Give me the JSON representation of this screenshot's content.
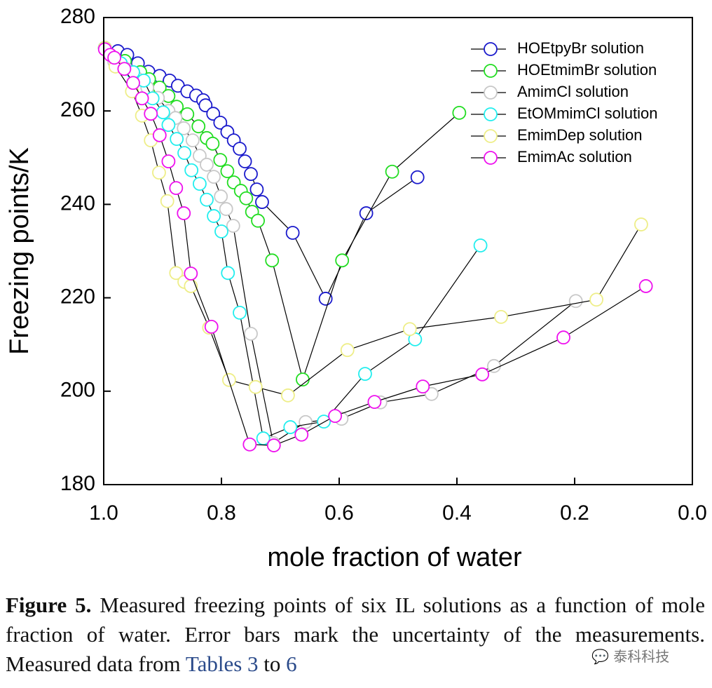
{
  "chart_data": {
    "type": "line",
    "markers": "open-circle",
    "xlabel": "mole fraction of water",
    "ylabel": "Freezing points/K",
    "xlim": [
      1.0,
      0.0
    ],
    "ylim": [
      180,
      280
    ],
    "xticks": [
      {
        "value": 1.0,
        "label": "1.0"
      },
      0.8,
      0.6,
      0.4,
      0.2,
      {
        "value": 0.0,
        "label": "0.0"
      }
    ],
    "yticks": [
      180,
      200,
      220,
      240,
      260,
      280
    ],
    "legend": "upper right",
    "line_color": "#000000",
    "series": [
      {
        "name": "HOEtpyBr solution",
        "color": "#1a1acc",
        "x": [
          0.998,
          0.976,
          0.96,
          0.942,
          0.924,
          0.905,
          0.888,
          0.874,
          0.858,
          0.843,
          0.831,
          0.827,
          0.814,
          0.802,
          0.79,
          0.779,
          0.769,
          0.76,
          0.75,
          0.74,
          0.731,
          0.679,
          0.623,
          0.554,
          0.467
        ],
        "values": [
          273.5,
          272.8,
          272,
          270.2,
          268.4,
          267.5,
          266.5,
          265.4,
          264.2,
          263.3,
          262.3,
          261.2,
          259.4,
          257.5,
          255.5,
          253.7,
          251.9,
          249.2,
          246.5,
          243.2,
          240.5,
          233.9,
          219.8,
          238.1,
          245.8
        ]
      },
      {
        "name": "HOEtmimBr solution",
        "color": "#22dd22",
        "x": [
          0.998,
          0.964,
          0.938,
          0.923,
          0.905,
          0.89,
          0.876,
          0.858,
          0.839,
          0.825,
          0.815,
          0.802,
          0.79,
          0.779,
          0.767,
          0.758,
          0.748,
          0.738,
          0.714,
          0.662,
          0.595,
          0.51,
          0.396
        ],
        "values": [
          273.5,
          270.7,
          268.3,
          266.8,
          265,
          263.2,
          260.9,
          259.3,
          256.7,
          254.2,
          253,
          249.5,
          247.1,
          244.7,
          242.9,
          241.3,
          238.4,
          236.5,
          228,
          202.5,
          228,
          247,
          259.6
        ]
      },
      {
        "name": "AmimCl solution",
        "color": "#c8c8c8",
        "x": [
          0.998,
          0.982,
          0.962,
          0.944,
          0.926,
          0.908,
          0.89,
          0.878,
          0.864,
          0.849,
          0.837,
          0.825,
          0.813,
          0.801,
          0.792,
          0.78,
          0.75,
          0.712,
          0.657,
          0.596,
          0.53,
          0.443,
          0.337,
          0.198
        ],
        "values": [
          273.5,
          270.5,
          269,
          267,
          265,
          262.8,
          260,
          258.5,
          256.3,
          253.7,
          250.4,
          248.5,
          245.9,
          241.7,
          239,
          235.4,
          212.3,
          188.9,
          193.4,
          194.1,
          197.6,
          199.4,
          205.4,
          219.3
        ]
      },
      {
        "name": "EtOMmimCl solution",
        "color": "#22eeee",
        "x": [
          0.998,
          0.971,
          0.95,
          0.932,
          0.917,
          0.899,
          0.89,
          0.876,
          0.863,
          0.851,
          0.837,
          0.825,
          0.813,
          0.8,
          0.789,
          0.769,
          0.729,
          0.683,
          0.626,
          0.556,
          0.471,
          0.36
        ],
        "values": [
          273.5,
          270.2,
          268.3,
          266.5,
          262.7,
          259.7,
          257,
          254,
          251,
          247.3,
          244.4,
          241,
          237.5,
          234.2,
          225.3,
          216.8,
          189.9,
          192.3,
          193.5,
          203.7,
          211.1,
          231.2
        ]
      },
      {
        "name": "EmimDep solution",
        "color": "#eeee88",
        "x": [
          0.998,
          0.98,
          0.952,
          0.935,
          0.92,
          0.906,
          0.892,
          0.877,
          0.863,
          0.852,
          0.821,
          0.787,
          0.742,
          0.687,
          0.586,
          0.48,
          0.325,
          0.163,
          0.087
        ],
        "values": [
          273.5,
          269.5,
          264.2,
          259,
          253.7,
          246.8,
          240.7,
          225.3,
          223.4,
          222.5,
          213.6,
          202.4,
          200.9,
          199.1,
          208.8,
          213.3,
          215.9,
          219.6,
          235.7
        ]
      },
      {
        "name": "EmimAc solution",
        "color": "#ee11ee",
        "x": [
          0.998,
          0.989,
          0.982,
          0.965,
          0.95,
          0.935,
          0.92,
          0.905,
          0.89,
          0.877,
          0.864,
          0.852,
          0.817,
          0.752,
          0.711,
          0.664,
          0.607,
          0.54,
          0.458,
          0.357,
          0.219,
          0.079
        ],
        "values": [
          273.2,
          272,
          271.4,
          269,
          266,
          262.7,
          259.4,
          254.8,
          249.2,
          243.5,
          238.1,
          225.2,
          213.8,
          188.6,
          188.4,
          190.7,
          194.7,
          197.7,
          201,
          203.6,
          211.5,
          222.5
        ]
      }
    ]
  },
  "caption": {
    "label": "Figure 5.",
    "text": "Measured freezing points of six IL solutions as a function of mole fraction of water. Error bars mark the uncertainty of the measurements. Measured data from",
    "link1": "Tables 3",
    "between": "to",
    "link2": "6"
  },
  "watermark": "泰科科技"
}
